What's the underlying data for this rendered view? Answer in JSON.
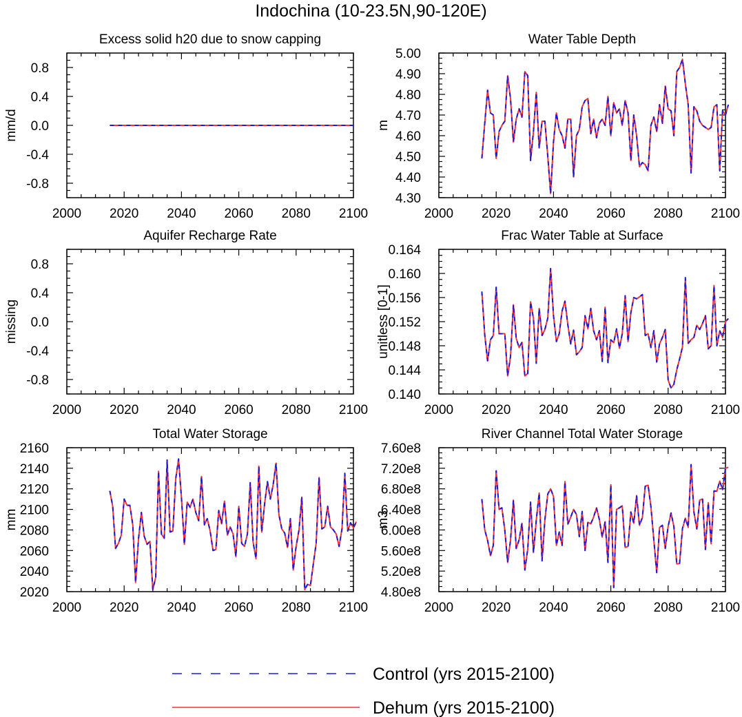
{
  "title": "Indochina (10-23.5N,90-120E)",
  "colors": {
    "control": "#1a1adf",
    "dehum": "#ff3030",
    "axis": "#000000"
  },
  "legend": [
    {
      "key": "control",
      "label": "Control (yrs 2015-2100)",
      "style": "dashed"
    },
    {
      "key": "dehum",
      "label": "Dehum (yrs 2015-2100)",
      "style": "solid"
    }
  ],
  "chart_data": [
    {
      "type": "line",
      "title": "Excess solid h20 due to snow capping",
      "ylabel": "mm/d",
      "xlim": [
        2000,
        2100
      ],
      "ylim": [
        -1.0,
        1.0
      ],
      "yticks": [
        -0.8,
        -0.4,
        0.0,
        0.4,
        0.8
      ],
      "yticklabels": [
        "-0.8",
        "-0.4",
        "0.0",
        "0.4",
        "0.8"
      ],
      "xticks": [
        2000,
        2020,
        2040,
        2060,
        2080,
        2100
      ],
      "x_start": 2015,
      "series": [
        {
          "name": "Control (yrs 2015-2100)",
          "constant": 0.0
        },
        {
          "name": "Dehum (yrs 2015-2100)",
          "constant": 0.0
        }
      ]
    },
    {
      "type": "line",
      "title": "Water Table Depth",
      "ylabel": "m",
      "xlim": [
        2000,
        2100
      ],
      "ylim": [
        4.3,
        5.0
      ],
      "yticks": [
        4.3,
        4.4,
        4.5,
        4.6,
        4.7,
        4.8,
        4.9,
        5.0
      ],
      "yticklabels": [
        "4.30",
        "4.40",
        "4.50",
        "4.60",
        "4.70",
        "4.80",
        "4.90",
        "5.00"
      ],
      "xticks": [
        2000,
        2020,
        2040,
        2060,
        2080,
        2100
      ],
      "x_start": 2015,
      "values": [
        4.49,
        4.66,
        4.82,
        4.71,
        4.7,
        4.49,
        4.62,
        4.65,
        4.67,
        4.89,
        4.78,
        4.57,
        4.68,
        4.73,
        4.69,
        4.91,
        4.89,
        4.48,
        4.62,
        4.81,
        4.54,
        4.67,
        4.67,
        4.5,
        4.32,
        4.57,
        4.71,
        4.63,
        4.6,
        4.54,
        4.68,
        4.68,
        4.4,
        4.6,
        4.63,
        4.74,
        4.77,
        4.78,
        4.61,
        4.68,
        4.59,
        4.66,
        4.68,
        4.65,
        4.79,
        4.6,
        4.76,
        4.71,
        4.73,
        4.65,
        4.77,
        4.71,
        4.48,
        4.7,
        4.6,
        4.45,
        4.47,
        4.46,
        4.43,
        4.65,
        4.69,
        4.62,
        4.75,
        4.66,
        4.84,
        4.73,
        4.72,
        4.6,
        4.91,
        4.93,
        4.97,
        4.85,
        4.75,
        4.42,
        4.74,
        4.72,
        4.67,
        4.65,
        4.64,
        4.63,
        4.64,
        4.74,
        4.75,
        4.43,
        4.72,
        4.7,
        4.75
      ]
    },
    {
      "type": "line",
      "title": "Aquifer Recharge Rate",
      "ylabel": "missing",
      "xlim": [
        2000,
        2100
      ],
      "ylim": [
        -1.0,
        1.0
      ],
      "yticks": [
        -0.8,
        -0.4,
        0.0,
        0.4,
        0.8
      ],
      "yticklabels": [
        "-0.8",
        "-0.4",
        "0.0",
        "0.4",
        "0.8"
      ],
      "xticks": [
        2000,
        2020,
        2040,
        2060,
        2080,
        2100
      ],
      "series": []
    },
    {
      "type": "line",
      "title": "Frac Water Table at Surface",
      "ylabel": "unitless [0-1]",
      "xlim": [
        2000,
        2100
      ],
      "ylim": [
        0.14,
        0.164
      ],
      "yticks": [
        0.14,
        0.144,
        0.148,
        0.152,
        0.156,
        0.16,
        0.164
      ],
      "yticklabels": [
        "0.140",
        "0.144",
        "0.148",
        "0.152",
        "0.156",
        "0.160",
        "0.164"
      ],
      "xticks": [
        2000,
        2020,
        2040,
        2060,
        2080,
        2100
      ],
      "x_start": 2015,
      "values": [
        0.157,
        0.1498,
        0.1455,
        0.149,
        0.1497,
        0.1577,
        0.15,
        0.15,
        0.15,
        0.143,
        0.1462,
        0.1548,
        0.1492,
        0.1477,
        0.1486,
        0.143,
        0.1434,
        0.1553,
        0.1525,
        0.1451,
        0.1542,
        0.1497,
        0.1507,
        0.1526,
        0.1608,
        0.153,
        0.1487,
        0.15,
        0.1538,
        0.1554,
        0.1515,
        0.1483,
        0.1506,
        0.1465,
        0.147,
        0.1477,
        0.153,
        0.1508,
        0.1542,
        0.1505,
        0.149,
        0.1505,
        0.1454,
        0.1544,
        0.1452,
        0.149,
        0.1485,
        0.1508,
        0.1476,
        0.15,
        0.1563,
        0.1487,
        0.1535,
        0.156,
        0.1558,
        0.1561,
        0.1565,
        0.1497,
        0.15,
        0.1477,
        0.1505,
        0.1453,
        0.1483,
        0.1494,
        0.1507,
        0.1423,
        0.141,
        0.1416,
        0.144,
        0.1458,
        0.1478,
        0.1593,
        0.1484,
        0.149,
        0.1494,
        0.1514,
        0.1507,
        0.1517,
        0.153,
        0.1475,
        0.148,
        0.158,
        0.148,
        0.1505,
        0.1494,
        0.152,
        0.1525
      ]
    },
    {
      "type": "line",
      "title": "Total Water Storage",
      "ylabel": "mm",
      "xlim": [
        2000,
        2100
      ],
      "ylim": [
        2020,
        2160
      ],
      "yticks": [
        2020,
        2040,
        2060,
        2080,
        2100,
        2120,
        2140,
        2160
      ],
      "yticklabels": [
        "2020",
        "2040",
        "2060",
        "2080",
        "2100",
        "2120",
        "2140",
        "2160"
      ],
      "xticks": [
        2000,
        2020,
        2040,
        2060,
        2080,
        2100
      ],
      "x_start": 2015,
      "values": [
        2118,
        2103,
        2062,
        2067,
        2075,
        2110,
        2104,
        2104,
        2085,
        2029,
        2071,
        2097,
        2074,
        2066,
        2069,
        2022,
        2034,
        2137,
        2076,
        2072,
        2148,
        2078,
        2079,
        2130,
        2149,
        2111,
        2066,
        2107,
        2102,
        2110,
        2097,
        2089,
        2132,
        2085,
        2091,
        2079,
        2060,
        2061,
        2099,
        2086,
        2108,
        2075,
        2083,
        2076,
        2054,
        2103,
        2067,
        2064,
        2076,
        2126,
        2068,
        2052,
        2142,
        2078,
        2105,
        2127,
        2110,
        2124,
        2145,
        2095,
        2081,
        2077,
        2063,
        2091,
        2041,
        2064,
        2080,
        2112,
        2022,
        2027,
        2026,
        2047,
        2067,
        2131,
        2081,
        2083,
        2103,
        2083,
        2080,
        2076,
        2064,
        2081,
        2135,
        2079,
        2087,
        2082,
        2088
      ]
    },
    {
      "type": "line",
      "title": "River Channel Total Water Storage",
      "ylabel": "m3",
      "xlim": [
        2000,
        2100
      ],
      "ylim": [
        480000000.0,
        760000000.0
      ],
      "yticks": [
        480000000.0,
        520000000.0,
        560000000.0,
        600000000.0,
        640000000.0,
        680000000.0,
        720000000.0,
        760000000.0
      ],
      "yticklabels": [
        "4.80e8",
        "5.20e8",
        "5.60e8",
        "6.00e8",
        "6.40e8",
        "6.80e8",
        "7.20e8",
        "7.60e8"
      ],
      "xticks": [
        2000,
        2020,
        2040,
        2060,
        2080,
        2100
      ],
      "x_start": 2015,
      "values": [
        660000000.0,
        600000000.0,
        580000000.0,
        550000000.0,
        570000000.0,
        715000000.0,
        640000000.0,
        643000000.0,
        600000000.0,
        537000000.0,
        580000000.0,
        658000000.0,
        564000000.0,
        581000000.0,
        613000000.0,
        522000000.0,
        563000000.0,
        654000000.0,
        556000000.0,
        619000000.0,
        672000000.0,
        540000000.0,
        620000000.0,
        670000000.0,
        680000000.0,
        665000000.0,
        570000000.0,
        596000000.0,
        570000000.0,
        694000000.0,
        611000000.0,
        625000000.0,
        640000000.0,
        630000000.0,
        587000000.0,
        636000000.0,
        560000000.0,
        615000000.0,
        612000000.0,
        625000000.0,
        643000000.0,
        620000000.0,
        586000000.0,
        616000000.0,
        537000000.0,
        688000000.0,
        488000000.0,
        640000000.0,
        643000000.0,
        647000000.0,
        566000000.0,
        568000000.0,
        635000000.0,
        613000000.0,
        667000000.0,
        609000000.0,
        624000000.0,
        685000000.0,
        687000000.0,
        645000000.0,
        581000000.0,
        517000000.0,
        605000000.0,
        609000000.0,
        564000000.0,
        607000000.0,
        633000000.0,
        607000000.0,
        534000000.0,
        535000000.0,
        603000000.0,
        623000000.0,
        605000000.0,
        727000000.0,
        635000000.0,
        602000000.0,
        658000000.0,
        660000000.0,
        562000000.0,
        653000000.0,
        573000000.0,
        676000000.0,
        675000000.0,
        695000000.0,
        678000000.0,
        720000000.0,
        722000000.0
      ]
    }
  ]
}
